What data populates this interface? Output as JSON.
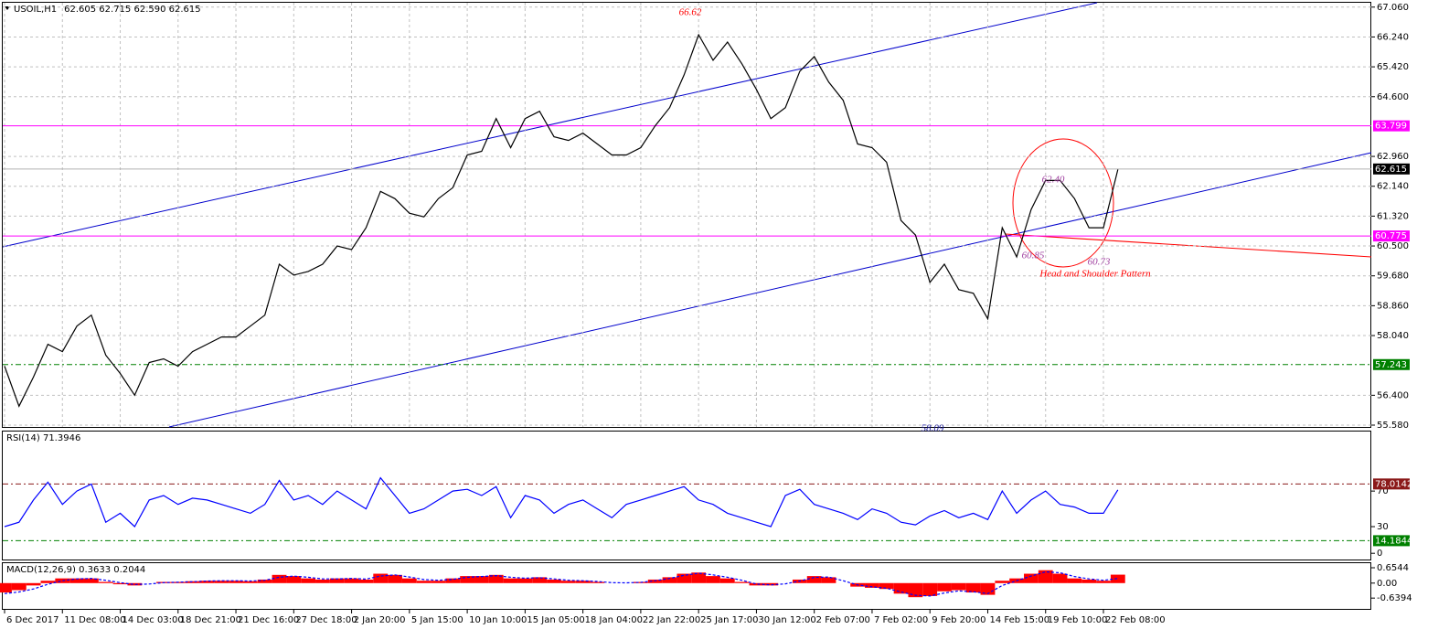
{
  "chart_data": [
    {
      "type": "line",
      "title": "USOIL,H1",
      "subtitle": "62.605 62.715 62.590 62.615",
      "categories": [
        "6 Dec 2017",
        null,
        null,
        null,
        "11 Dec 08:00",
        null,
        null,
        null,
        "14 Dec 03:00",
        null,
        null,
        null,
        "18 Dec 21:00",
        null,
        null,
        null,
        "21 Dec 16:00",
        null,
        null,
        null,
        "27 Dec 18:00",
        null,
        null,
        null,
        "2 Jan 20:00",
        null,
        null,
        null,
        "5 Jan 15:00",
        null,
        null,
        null,
        "10 Jan 10:00",
        null,
        null,
        null,
        "15 Jan 05:00",
        null,
        null,
        null,
        "18 Jan 04:00",
        null,
        null,
        null,
        "22 Jan 22:00",
        null,
        null,
        null,
        "25 Jan 17:00",
        null,
        null,
        null,
        "30 Jan 12:00",
        null,
        null,
        null,
        "2 Feb 07:00",
        null,
        null,
        null,
        "7 Feb 02:00",
        null,
        null,
        null,
        "9 Feb 20:00",
        null,
        null,
        null,
        "14 Feb 15:00",
        null,
        null,
        null,
        "19 Feb 10:00",
        null,
        null,
        null,
        "22 Feb 08:00",
        null
      ],
      "color": "#000000",
      "values": [
        57.2,
        56.1,
        56.9,
        57.8,
        57.6,
        58.3,
        58.6,
        57.5,
        57.0,
        56.4,
        57.3,
        57.4,
        57.2,
        57.6,
        57.8,
        58.0,
        58.0,
        58.3,
        58.6,
        60.0,
        59.7,
        59.8,
        60.0,
        60.5,
        60.4,
        61.0,
        62.0,
        61.8,
        61.4,
        61.3,
        61.8,
        62.1,
        63.0,
        63.1,
        64.0,
        63.2,
        64.0,
        64.2,
        63.5,
        63.4,
        63.6,
        63.3,
        63.0,
        63.0,
        63.2,
        63.8,
        64.3,
        65.2,
        66.3,
        65.6,
        66.1,
        65.5,
        64.8,
        64.0,
        64.3,
        65.3,
        65.7,
        65.0,
        64.5,
        63.3,
        63.2,
        62.8,
        61.2,
        60.8,
        59.5,
        60.0,
        59.3,
        59.2,
        58.5,
        61.0,
        60.2,
        61.5,
        62.3,
        62.3,
        61.8,
        61.0,
        61.0,
        62.6
      ],
      "ylim": [
        55.53,
        67.18
      ],
      "yticks": [
        {
          "value": 67.06,
          "label": "67.060"
        },
        {
          "value": 66.24,
          "label": "66.240"
        },
        {
          "value": 65.42,
          "label": "65.420"
        },
        {
          "value": 64.6,
          "label": "64.600"
        },
        {
          "value": 62.96,
          "label": "62.960"
        },
        {
          "value": 62.14,
          "label": "62.140"
        },
        {
          "value": 61.32,
          "label": "61.320"
        },
        {
          "value": 60.5,
          "label": "60.500"
        },
        {
          "value": 59.68,
          "label": "59.680"
        },
        {
          "value": 58.86,
          "label": "58.860"
        },
        {
          "value": 58.04,
          "label": "58.040"
        },
        {
          "value": 56.4,
          "label": "56.400"
        },
        {
          "value": 55.58,
          "label": "55.580"
        }
      ],
      "grid": true,
      "levels": [
        {
          "value": 63.799,
          "color": "#ff00ff",
          "style": "solid"
        },
        {
          "value": 62.615,
          "color": "#000000",
          "style": "current"
        },
        {
          "value": 60.775,
          "color": "#ff00ff",
          "style": "solid"
        },
        {
          "value": 57.243,
          "color": "#008000",
          "style": "dashed"
        }
      ],
      "annotations": [
        {
          "text": "66.62",
          "color": "#ff0000"
        },
        {
          "text": "62.40",
          "color": "#a040a0"
        },
        {
          "text": "60.85",
          "color": "#a040a0"
        },
        {
          "text": "60.73",
          "color": "#a040a0"
        },
        {
          "text": "58.09",
          "color": "#1a1aa0"
        },
        {
          "text": "Head and Shoulder Pattern",
          "color": "#ff0000"
        }
      ]
    },
    {
      "type": "line",
      "title": "RSI(14) 71.3946",
      "color": "#0000ff",
      "values": [
        30,
        35,
        60,
        80,
        55,
        70,
        78,
        35,
        45,
        30,
        60,
        65,
        55,
        62,
        60,
        55,
        50,
        45,
        55,
        82,
        60,
        65,
        55,
        70,
        60,
        50,
        85,
        65,
        45,
        50,
        60,
        70,
        72,
        65,
        75,
        40,
        65,
        60,
        45,
        55,
        60,
        50,
        40,
        55,
        60,
        65,
        70,
        75,
        60,
        55,
        45,
        40,
        35,
        30,
        65,
        72,
        55,
        50,
        45,
        38,
        50,
        45,
        35,
        32,
        42,
        48,
        40,
        45,
        38,
        70,
        45,
        60,
        70,
        55,
        52,
        45,
        45,
        71.4
      ],
      "ylim": [
        -7,
        137
      ],
      "yticks": [
        70,
        30,
        0
      ],
      "levels": [
        {
          "value": 78.0142,
          "color": "#8b1a1a",
          "style": "dashed"
        },
        {
          "value": 14.1844,
          "color": "#008000",
          "style": "dashed"
        }
      ]
    },
    {
      "type": "bar",
      "title": "MACD(12,26,9) 0.3633 0.2044",
      "color": "#ff0000",
      "values": [
        -0.4,
        -0.3,
        -0.1,
        0.1,
        0.2,
        0.2,
        0.2,
        0.05,
        -0.05,
        -0.1,
        0,
        0.05,
        0.05,
        0.08,
        0.1,
        0.1,
        0.1,
        0.08,
        0.15,
        0.35,
        0.3,
        0.2,
        0.15,
        0.2,
        0.2,
        0.15,
        0.4,
        0.35,
        0.2,
        0.1,
        0.1,
        0.2,
        0.3,
        0.3,
        0.35,
        0.2,
        0.2,
        0.25,
        0.15,
        0.1,
        0.1,
        0.05,
        0,
        0,
        0.05,
        0.15,
        0.25,
        0.4,
        0.45,
        0.3,
        0.2,
        0.05,
        -0.1,
        -0.1,
        0,
        0.15,
        0.3,
        0.25,
        0,
        -0.15,
        -0.2,
        -0.25,
        -0.45,
        -0.6,
        -0.55,
        -0.35,
        -0.3,
        -0.4,
        -0.5,
        0.1,
        0.2,
        0.4,
        0.55,
        0.4,
        0.2,
        0.15,
        0.1,
        0.36
      ],
      "signal": {
        "color": "#0000ff",
        "values": [
          -0.45,
          -0.38,
          -0.25,
          -0.05,
          0.1,
          0.18,
          0.2,
          0.12,
          0.02,
          -0.06,
          -0.04,
          0.02,
          0.04,
          0.06,
          0.09,
          0.1,
          0.1,
          0.09,
          0.12,
          0.25,
          0.3,
          0.25,
          0.18,
          0.18,
          0.2,
          0.17,
          0.3,
          0.35,
          0.26,
          0.15,
          0.12,
          0.16,
          0.25,
          0.28,
          0.32,
          0.25,
          0.21,
          0.23,
          0.18,
          0.12,
          0.1,
          0.07,
          0.02,
          0.01,
          0.03,
          0.1,
          0.2,
          0.33,
          0.42,
          0.35,
          0.25,
          0.12,
          -0.04,
          -0.08,
          -0.03,
          0.09,
          0.24,
          0.26,
          0.1,
          -0.08,
          -0.16,
          -0.22,
          -0.38,
          -0.52,
          -0.55,
          -0.42,
          -0.33,
          -0.37,
          -0.45,
          -0.1,
          0.1,
          0.3,
          0.48,
          0.44,
          0.28,
          0.18,
          0.12,
          0.2
        ]
      },
      "ylim": [
        -1.1,
        0.85
      ],
      "yticks": [
        0.6544,
        {
          "value": 0,
          "label": "0.00"
        },
        -0.6394
      ]
    }
  ]
}
